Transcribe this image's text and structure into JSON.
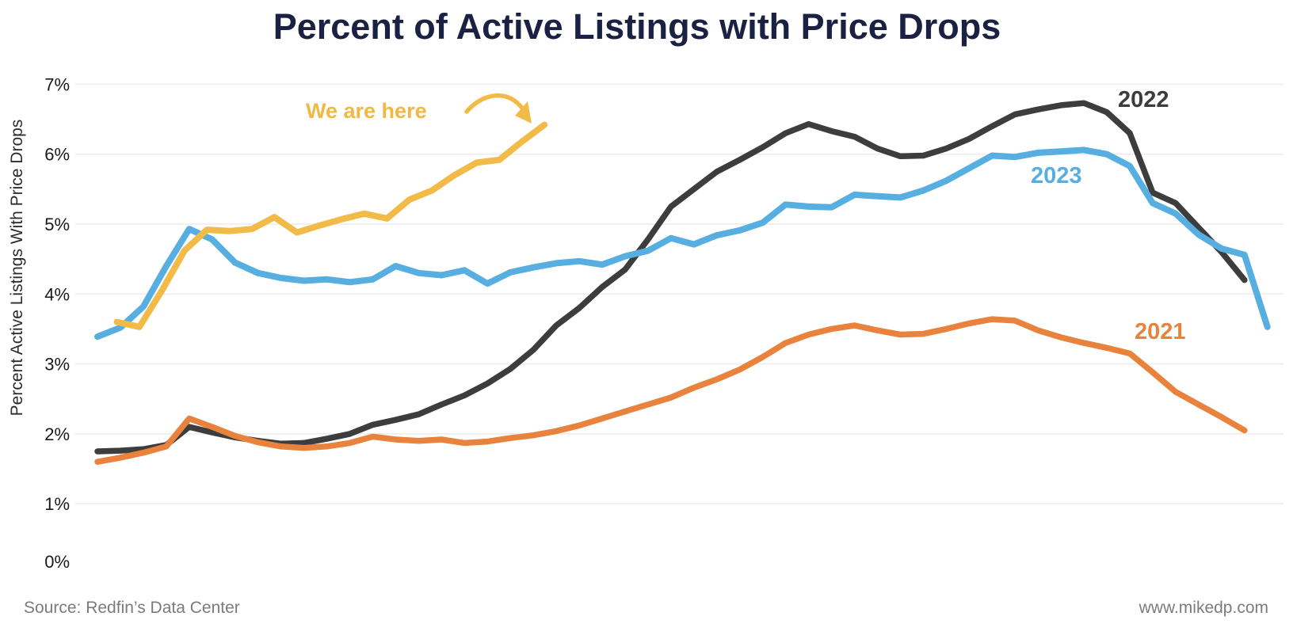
{
  "title": "Percent of Active Listings with Price Drops",
  "y_axis": {
    "title": "Percent Active Listings With Price Drops",
    "tick_labels": [
      "0%",
      "1%",
      "2%",
      "3%",
      "4%",
      "5%",
      "6%",
      "7%"
    ]
  },
  "line_labels": {
    "y2021": "2021",
    "y2022": "2022",
    "y2023": "2023"
  },
  "annotation": {
    "text": "We are here"
  },
  "footer": {
    "source": "Source: Redfin’s Data Center",
    "website": "www.mikedp.com"
  },
  "colors": {
    "title_text": "#1b2142",
    "grid": "#ececec",
    "tick_text": "#1a1a1a",
    "footer_text": "#7b7b7b",
    "series_2021": "#e8823c",
    "series_2022": "#3d3d3d",
    "series_2023": "#57aee0",
    "series_2024": "#f2bb48"
  },
  "chart_data": {
    "type": "line",
    "title": "Percent of Active Listings with Price Drops",
    "xlabel": "",
    "ylabel": "Percent Active Listings With Price Drops",
    "x_unit": "week of year (x tick labels not shown)",
    "ylim": [
      0,
      7
    ],
    "grid": "horizontal gridlines at 1%-7%",
    "legend_position": "inline labels at line ends",
    "series": [
      {
        "name": "2022",
        "color": "#3d3d3d",
        "width": 7.5,
        "start_week": 1,
        "values": [
          1.75,
          1.76,
          1.78,
          1.84,
          2.1,
          2.02,
          1.95,
          1.9,
          1.86,
          1.87,
          1.93,
          2.0,
          2.13,
          2.2,
          2.28,
          2.42,
          2.55,
          2.72,
          2.93,
          3.2,
          3.55,
          3.8,
          4.1,
          4.35,
          4.78,
          5.25,
          5.5,
          5.75,
          5.92,
          6.1,
          6.3,
          6.43,
          6.33,
          6.25,
          6.08,
          5.97,
          5.98,
          6.08,
          6.22,
          6.4,
          6.57,
          6.64,
          6.7,
          6.73,
          6.6,
          6.3,
          5.45,
          5.3,
          4.95,
          4.6,
          4.2
        ]
      },
      {
        "name": "2023",
        "color": "#57aee0",
        "width": 8,
        "start_week": 1,
        "values": [
          3.39,
          3.52,
          3.82,
          4.4,
          4.93,
          4.78,
          4.45,
          4.3,
          4.23,
          4.19,
          4.21,
          4.17,
          4.21,
          4.4,
          4.3,
          4.27,
          4.34,
          4.15,
          4.31,
          4.38,
          4.44,
          4.47,
          4.42,
          4.54,
          4.62,
          4.8,
          4.71,
          4.84,
          4.91,
          5.02,
          5.28,
          5.25,
          5.24,
          5.42,
          5.4,
          5.38,
          5.48,
          5.62,
          5.8,
          5.98,
          5.96,
          6.02,
          6.04,
          6.06,
          6.0,
          5.83,
          5.3,
          5.15,
          4.85,
          4.65,
          4.56,
          3.53
        ]
      },
      {
        "name": "2021",
        "color": "#e8823c",
        "width": 7.5,
        "start_week": 1,
        "values": [
          1.6,
          1.66,
          1.73,
          1.82,
          2.22,
          2.1,
          1.97,
          1.88,
          1.82,
          1.8,
          1.82,
          1.87,
          1.96,
          1.92,
          1.9,
          1.92,
          1.87,
          1.89,
          1.94,
          1.98,
          2.04,
          2.12,
          2.22,
          2.32,
          2.42,
          2.52,
          2.66,
          2.78,
          2.92,
          3.1,
          3.3,
          3.42,
          3.5,
          3.55,
          3.48,
          3.42,
          3.43,
          3.5,
          3.58,
          3.64,
          3.62,
          3.48,
          3.38,
          3.3,
          3.23,
          3.15,
          2.88,
          2.6,
          2.42,
          2.24,
          2.05
        ]
      },
      {
        "name": "2024 (We are here)",
        "color": "#f2bb48",
        "width": 8,
        "start_week": 1.85,
        "step": 28.4,
        "values": [
          3.6,
          3.53,
          4.05,
          4.62,
          4.92,
          4.9,
          4.93,
          5.1,
          4.88,
          4.98,
          5.07,
          5.15,
          5.08,
          5.35,
          5.48,
          5.7,
          5.88,
          5.92,
          6.18,
          6.42
        ]
      }
    ]
  }
}
